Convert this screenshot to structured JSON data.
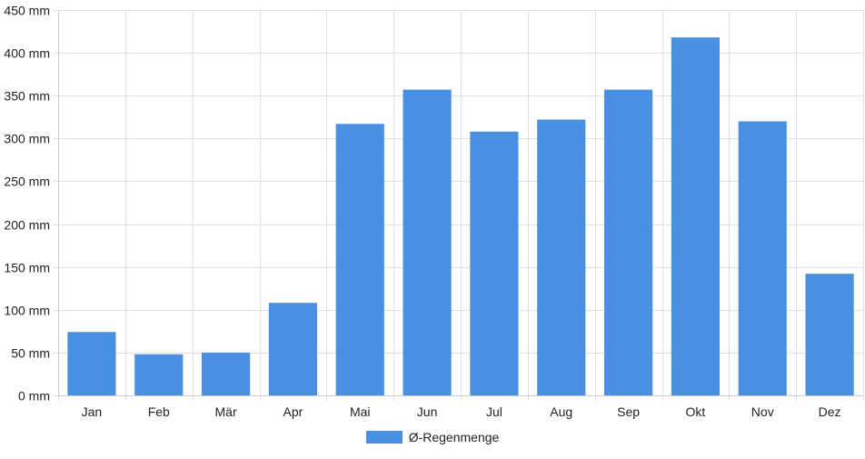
{
  "chart_data": {
    "type": "bar",
    "categories": [
      "Jan",
      "Feb",
      "Mär",
      "Apr",
      "Mai",
      "Jun",
      "Jul",
      "Aug",
      "Sep",
      "Okt",
      "Nov",
      "Dez"
    ],
    "series": [
      {
        "name": "Ø-Regenmenge",
        "values": [
          74,
          48,
          50,
          108,
          317,
          357,
          308,
          322,
          357,
          418,
          320,
          142
        ],
        "color": "#4a90e2"
      }
    ],
    "y_unit_suffix": " mm",
    "ylim": [
      0,
      450
    ],
    "y_ticks": [
      0,
      50,
      100,
      150,
      200,
      250,
      300,
      350,
      400,
      450
    ],
    "grid": true,
    "legend_position": "bottom"
  }
}
